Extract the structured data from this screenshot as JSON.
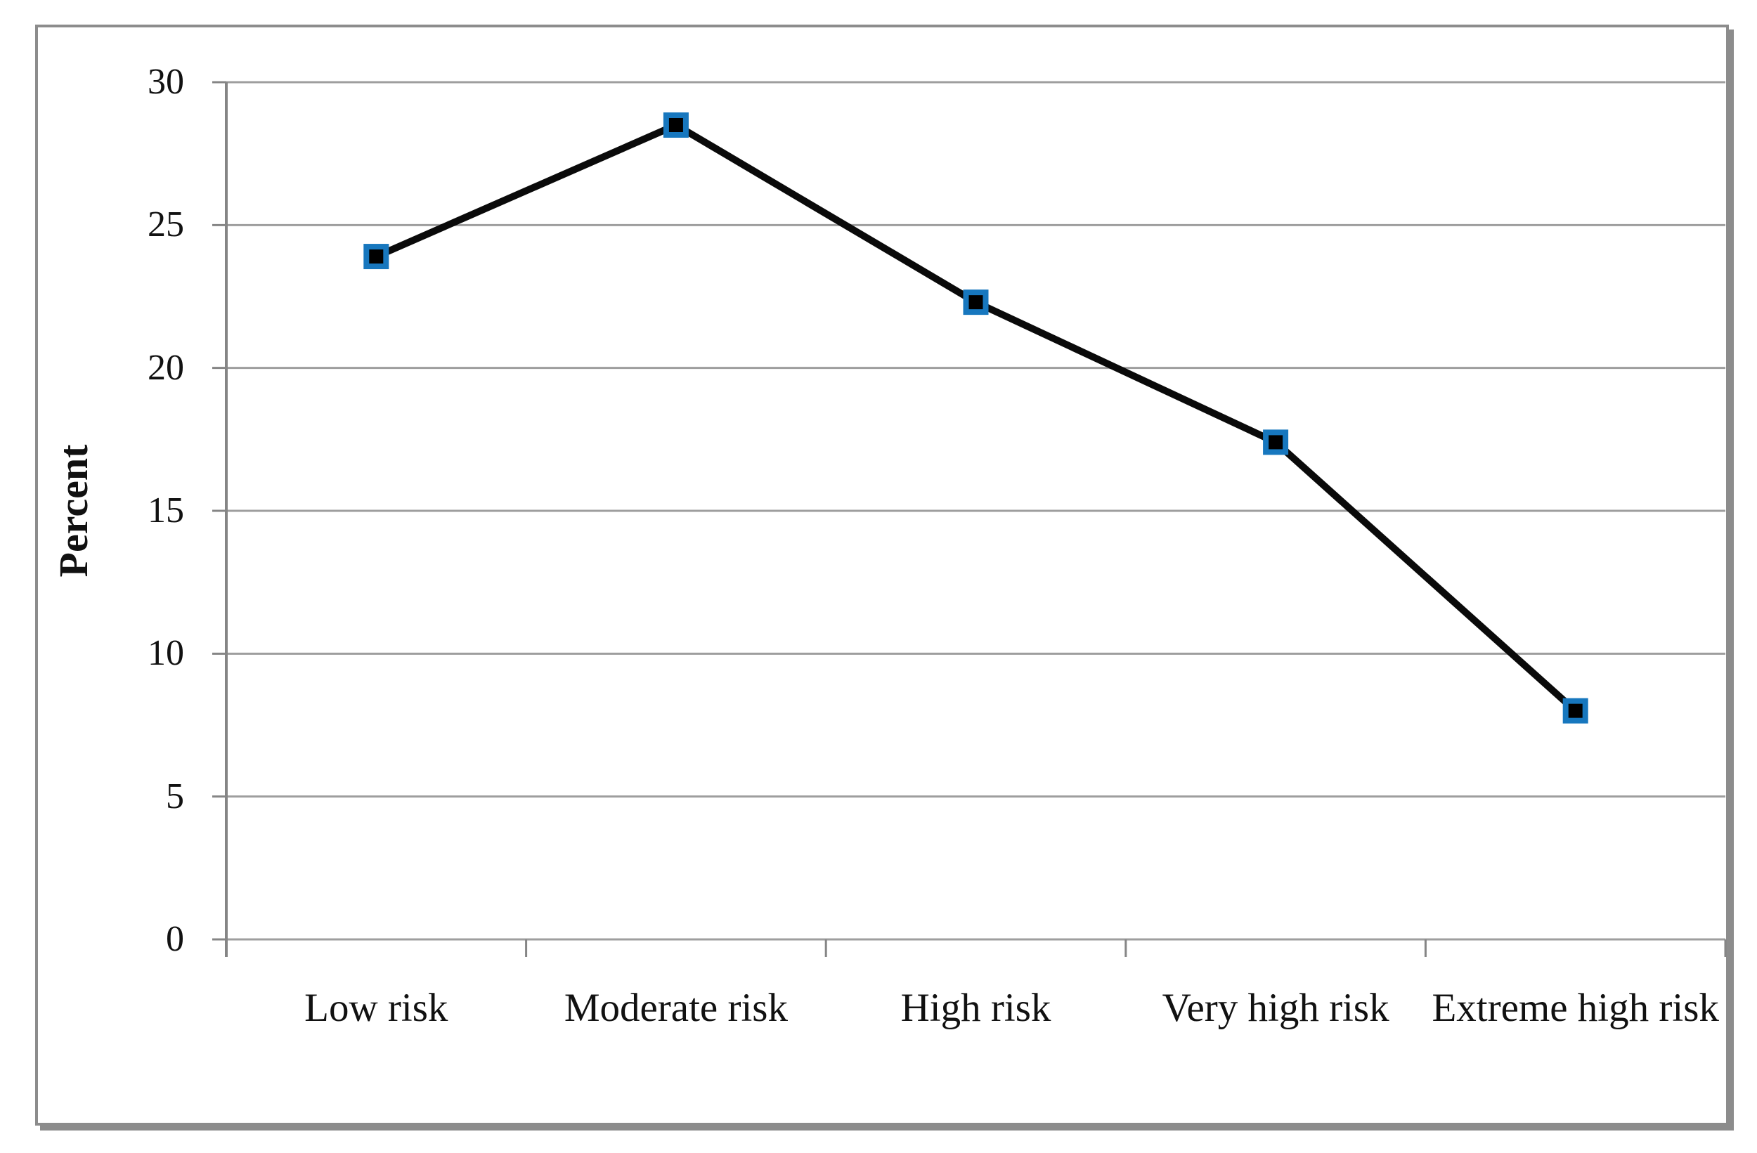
{
  "figure": {
    "background": "#ffffff",
    "border_color": "#8c8c8c"
  },
  "chart_data": {
    "type": "line",
    "title": "",
    "xlabel": "",
    "ylabel": "Percent",
    "categories": [
      "Low risk",
      "Moderate risk",
      "High risk",
      "Very high risk",
      "Extreme high risk"
    ],
    "series": [
      {
        "name": "Percent",
        "values": [
          23.9,
          28.5,
          22.3,
          17.4,
          8.0
        ]
      }
    ],
    "ylim": [
      0,
      30
    ],
    "ytick_step": 5,
    "ytick_labels": [
      "0",
      "5",
      "10",
      "15",
      "20",
      "25",
      "30"
    ],
    "grid": true,
    "legend_position": "none",
    "line_color": "#0a0a0a",
    "marker": {
      "shape": "square",
      "fill": "#000000",
      "border_color": "#1777be"
    },
    "gridline_color": "#9e9e9e",
    "axis_color": "#858585",
    "text_color": "#111111"
  }
}
